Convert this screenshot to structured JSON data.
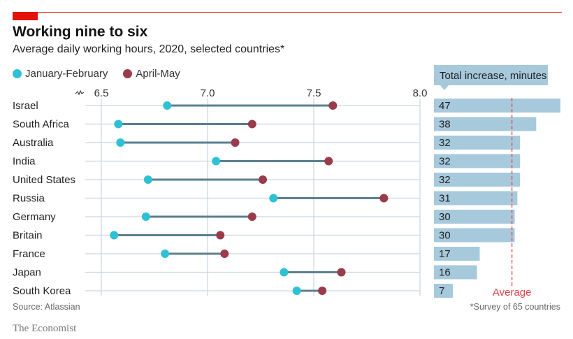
{
  "header": {
    "title": "Working nine to six",
    "subtitle": "Average daily working hours, 2020, selected countries*"
  },
  "legend": [
    {
      "label": "January-February",
      "color": "#2fc1d3"
    },
    {
      "label": "April-May",
      "color": "#9a3a4a"
    }
  ],
  "footer": {
    "source": "Source: Atlassian",
    "footnote": "*Survey of 65 countries",
    "brand": "The Economist"
  },
  "colors": {
    "accent_red": "#e3120b",
    "jan_feb": "#2fc1d3",
    "apr_may": "#9a3a4a",
    "connector": "#5b7f90",
    "bar": "#a6c9dc",
    "average_line": "#e3434b",
    "grid": "#c9d6df"
  },
  "chart_data": [
    {
      "type": "dumbbell",
      "title": "Working nine to six",
      "subtitle": "Average daily working hours, 2020, selected countries*",
      "xlabel": "",
      "ylabel": "",
      "xlim": [
        6.5,
        8.0
      ],
      "xticks": [
        "6.5",
        "7.0",
        "7.5",
        "8.0"
      ],
      "axis_break": true,
      "grid": true,
      "legend_position": "top-left",
      "categories": [
        "Israel",
        "South Africa",
        "Australia",
        "India",
        "United States",
        "Russia",
        "Germany",
        "Britain",
        "France",
        "Japan",
        "South Korea"
      ],
      "series": [
        {
          "name": "January-February",
          "values": [
            6.81,
            6.58,
            6.59,
            7.04,
            6.72,
            7.31,
            6.71,
            6.56,
            6.8,
            7.36,
            7.42
          ]
        },
        {
          "name": "April-May",
          "values": [
            7.59,
            7.21,
            7.13,
            7.57,
            7.26,
            7.83,
            7.21,
            7.06,
            7.08,
            7.63,
            7.54
          ]
        }
      ]
    },
    {
      "type": "bar",
      "orientation": "horizontal",
      "title": "Total increase, minutes",
      "categories": [
        "Israel",
        "South Africa",
        "Australia",
        "India",
        "United States",
        "Russia",
        "Germany",
        "Britain",
        "France",
        "Japan",
        "South Korea"
      ],
      "values": [
        47,
        38,
        32,
        32,
        32,
        31,
        30,
        30,
        17,
        16,
        7
      ],
      "reference_line": {
        "label": "Average",
        "value": 29
      },
      "xlim": [
        0,
        47
      ]
    }
  ]
}
